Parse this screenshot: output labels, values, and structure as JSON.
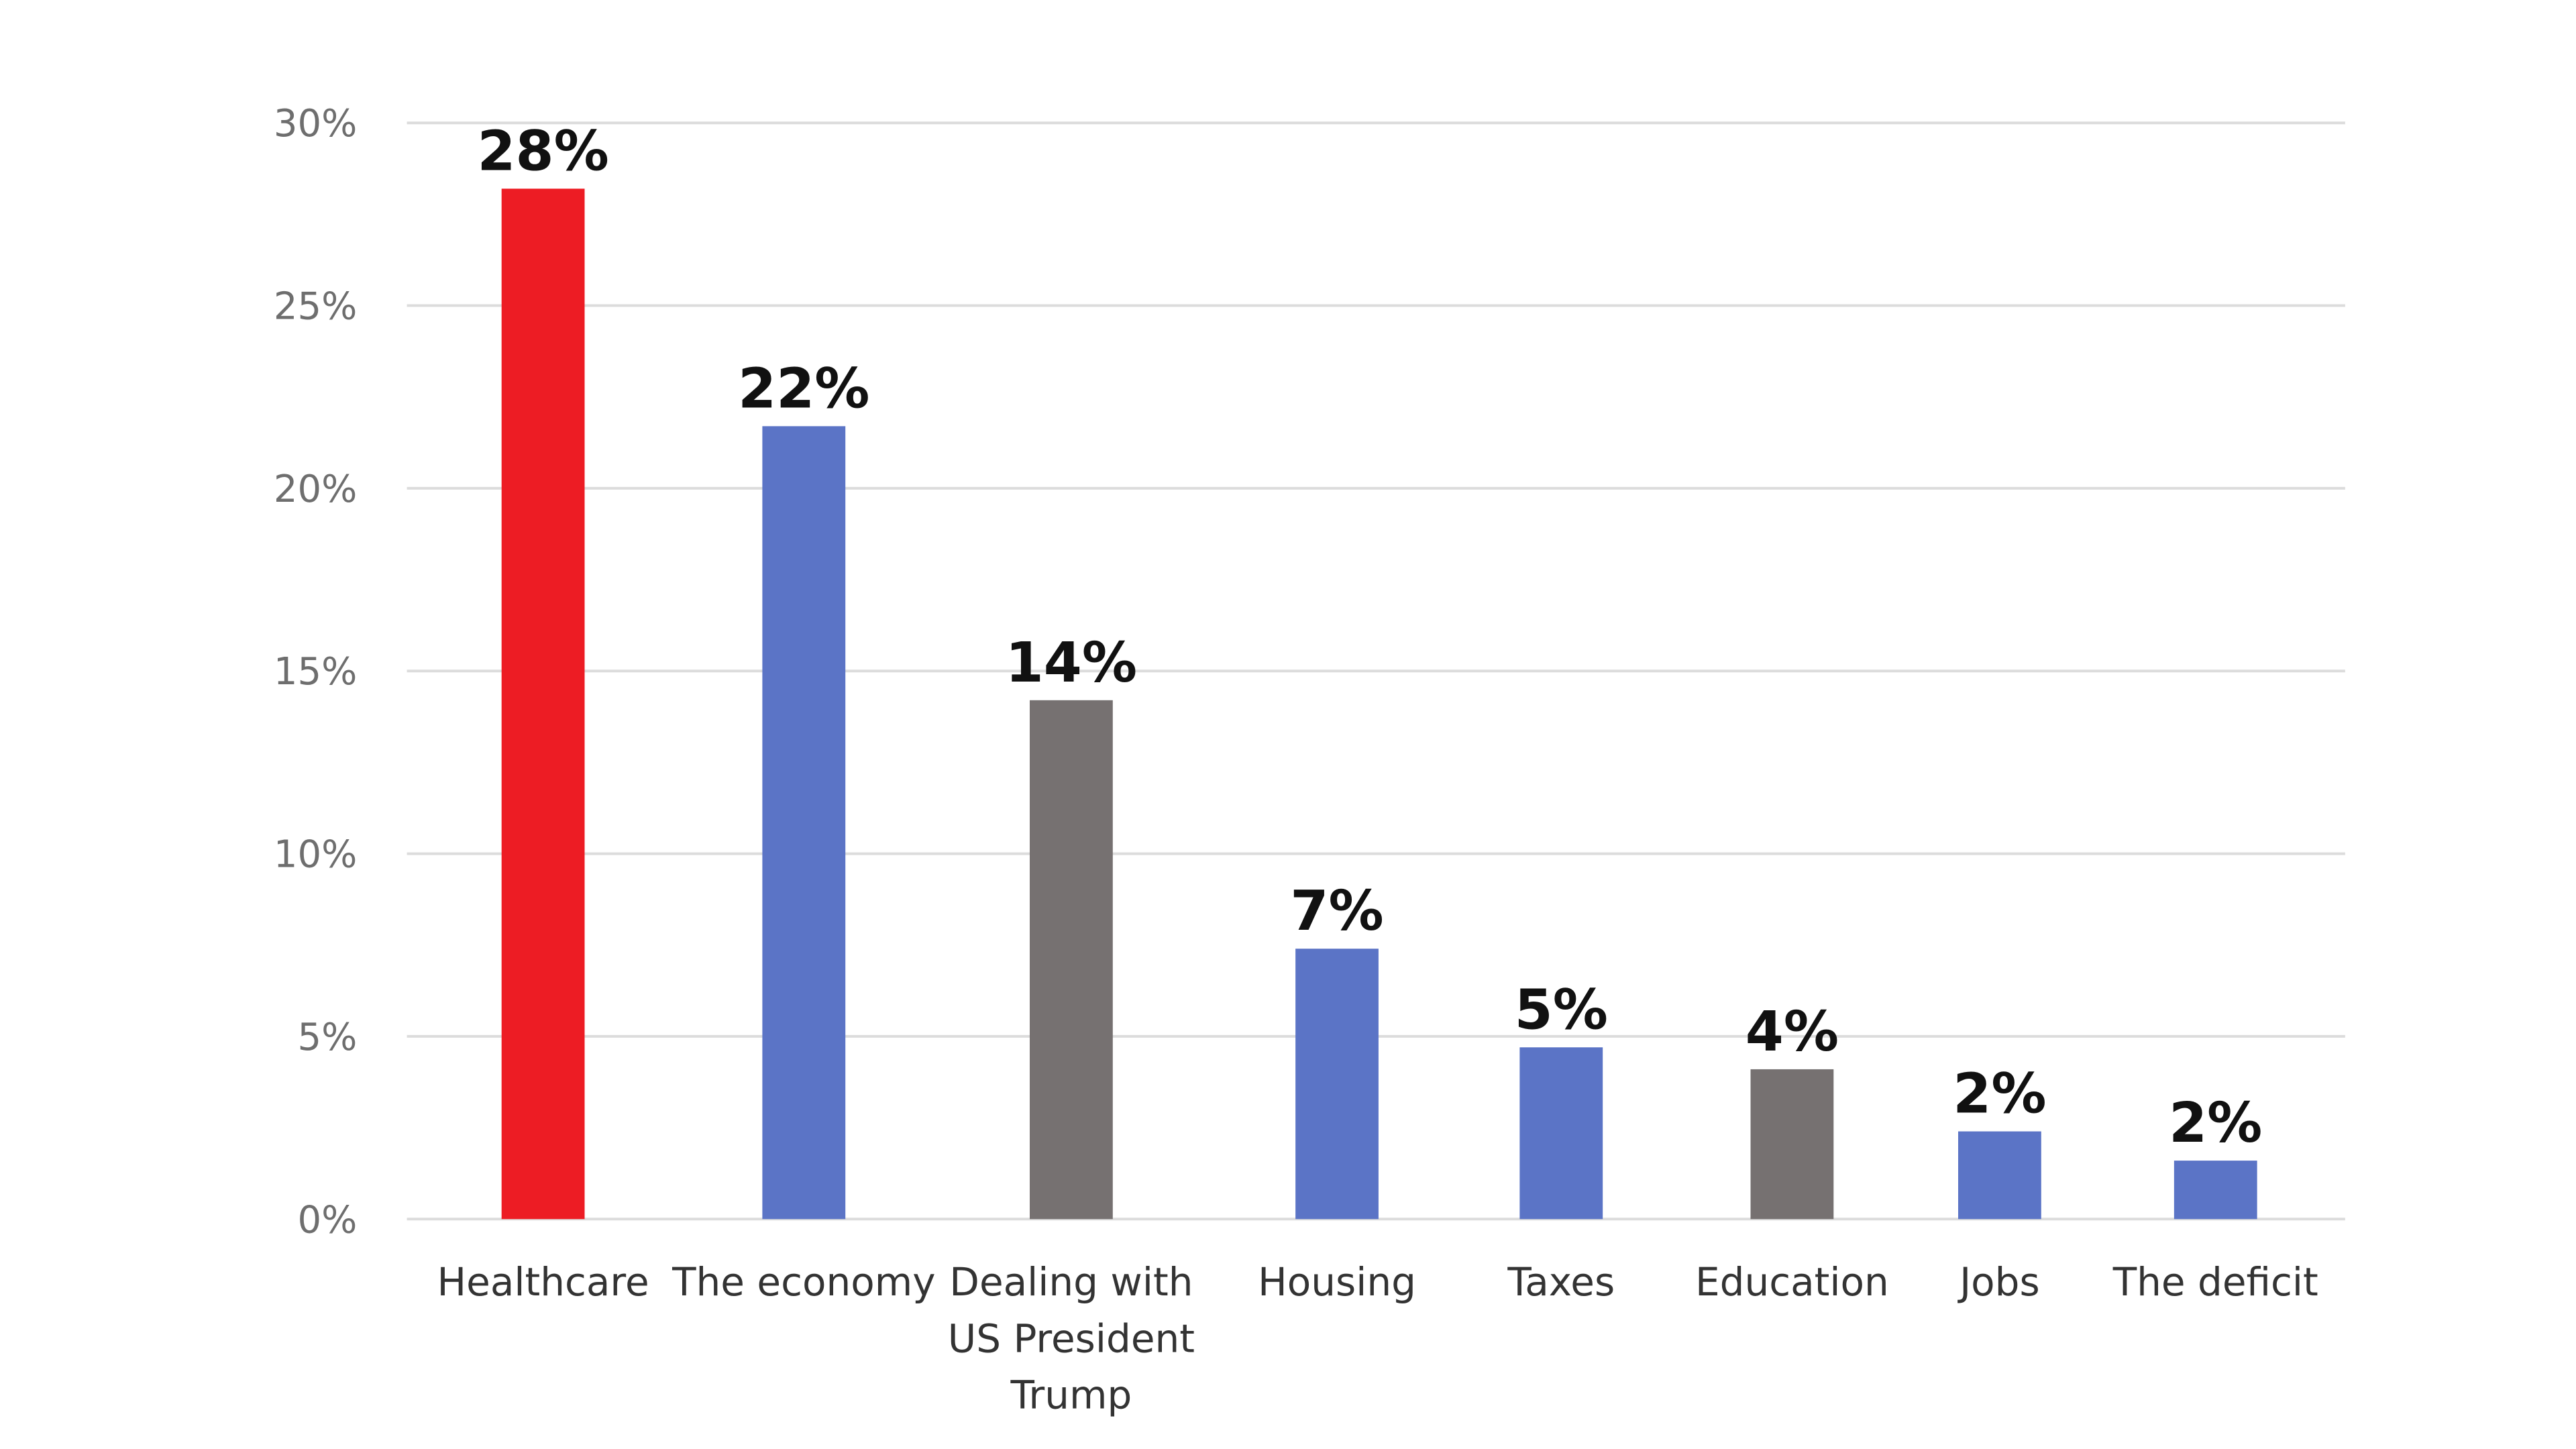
{
  "chart_data": {
    "type": "bar",
    "title": "",
    "xlabel": "",
    "ylabel": "",
    "ylim": [
      0,
      30
    ],
    "yticks": [
      "0%",
      "5%",
      "10%",
      "15%",
      "20%",
      "25%",
      "30%"
    ],
    "grid": true,
    "legend": "none",
    "categories": [
      [
        "Healthcare"
      ],
      [
        "The economy"
      ],
      [
        "Dealing with",
        "US President",
        "Trump"
      ],
      [
        "Housing"
      ],
      [
        "Taxes"
      ],
      [
        "Education"
      ],
      [
        "Jobs"
      ],
      [
        "The deficit"
      ]
    ],
    "values": [
      28.2,
      21.7,
      14.2,
      7.4,
      4.7,
      4.1,
      2.4,
      1.6
    ],
    "data_labels": [
      "28%",
      "22%",
      "14%",
      "7%",
      "5%",
      "4%",
      "2%",
      "2%"
    ],
    "bar_colors": [
      "#ed1c24",
      "#5b74c6",
      "#767171",
      "#5b74c6",
      "#5b74c6",
      "#767171",
      "#5b74c6",
      "#5b74c6"
    ]
  }
}
